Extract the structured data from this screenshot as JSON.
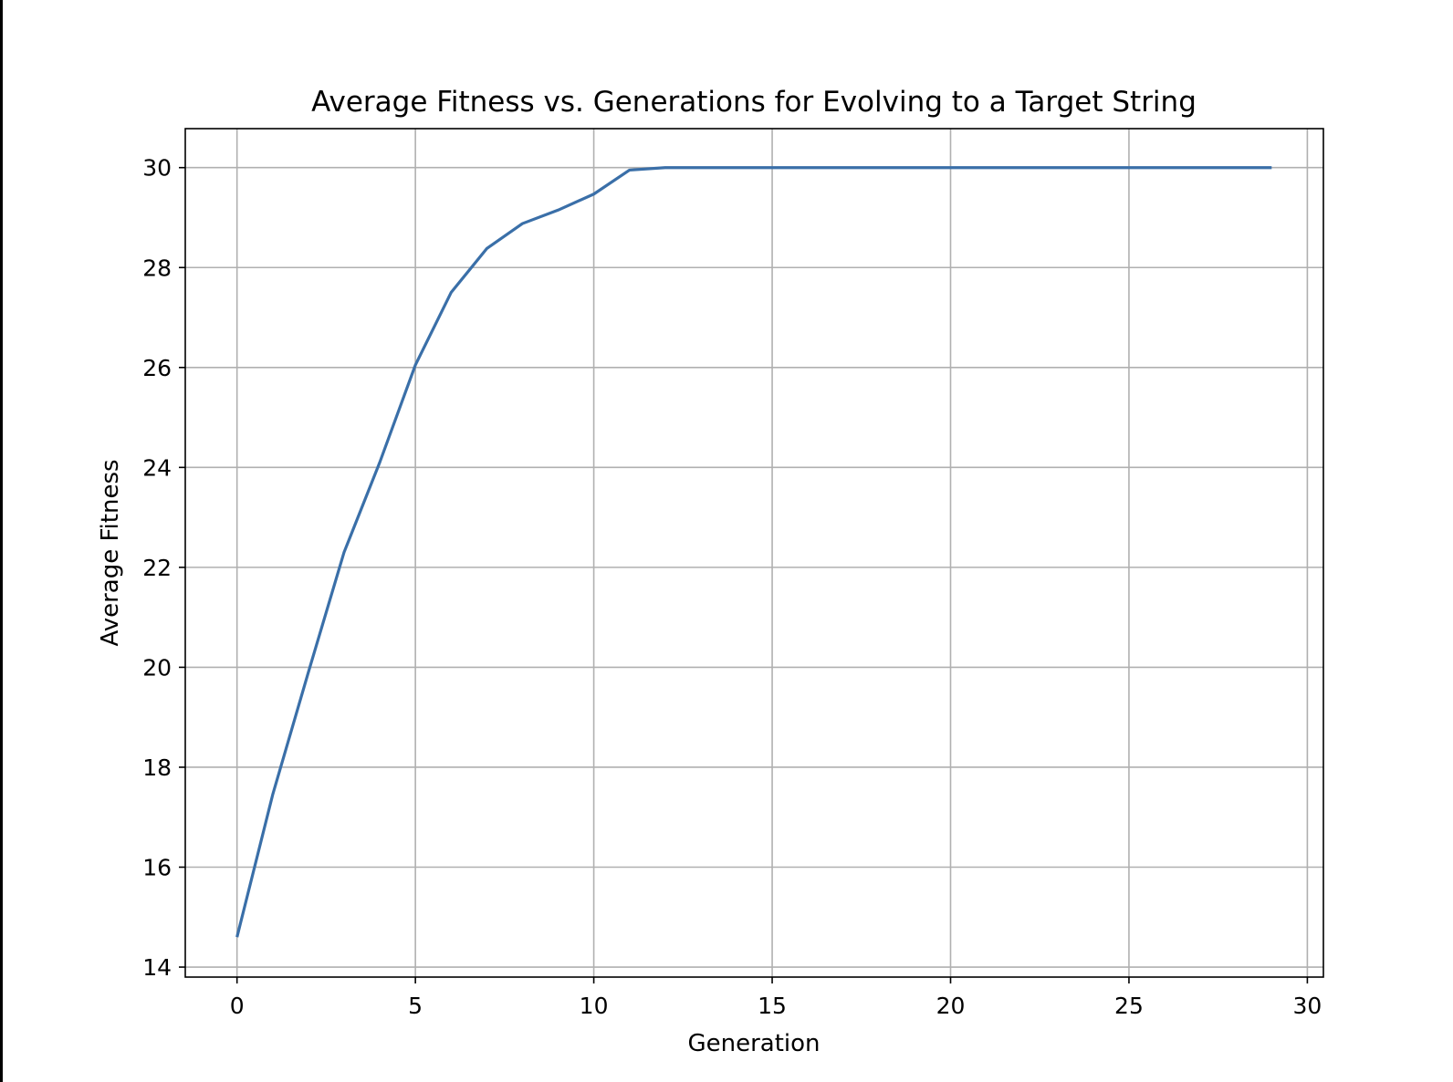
{
  "chart_data": {
    "type": "line",
    "title": "Average Fitness vs. Generations for Evolving to a Target String",
    "xlabel": "Generation",
    "ylabel": "Average Fitness",
    "xlim": [
      -1.45,
      30.45
    ],
    "ylim": [
      13.8,
      30.78
    ],
    "xticks": [
      0,
      5,
      10,
      15,
      20,
      25,
      30
    ],
    "xtick_labels": [
      "0",
      "5",
      "10",
      "15",
      "20",
      "25",
      "30"
    ],
    "yticks": [
      14,
      16,
      18,
      20,
      22,
      24,
      26,
      28,
      30
    ],
    "ytick_labels": [
      "14",
      "16",
      "18",
      "20",
      "22",
      "24",
      "26",
      "28",
      "30"
    ],
    "grid": true,
    "legend": "none",
    "series": [
      {
        "color": "#3a6fa8",
        "x": [
          0,
          1,
          2,
          3,
          4,
          5,
          6,
          7,
          8,
          9,
          10,
          11,
          12,
          13,
          14,
          15,
          16,
          17,
          18,
          19,
          20,
          21,
          22,
          23,
          24,
          25,
          26,
          27,
          28,
          29
        ],
        "values": [
          14.6,
          17.45,
          19.9,
          22.3,
          24.1,
          26.05,
          27.5,
          28.38,
          28.88,
          29.15,
          29.47,
          29.95,
          30,
          30,
          30,
          30,
          30,
          30,
          30,
          30,
          30,
          30,
          30,
          30,
          30,
          30,
          30,
          30,
          30,
          30
        ]
      }
    ]
  }
}
